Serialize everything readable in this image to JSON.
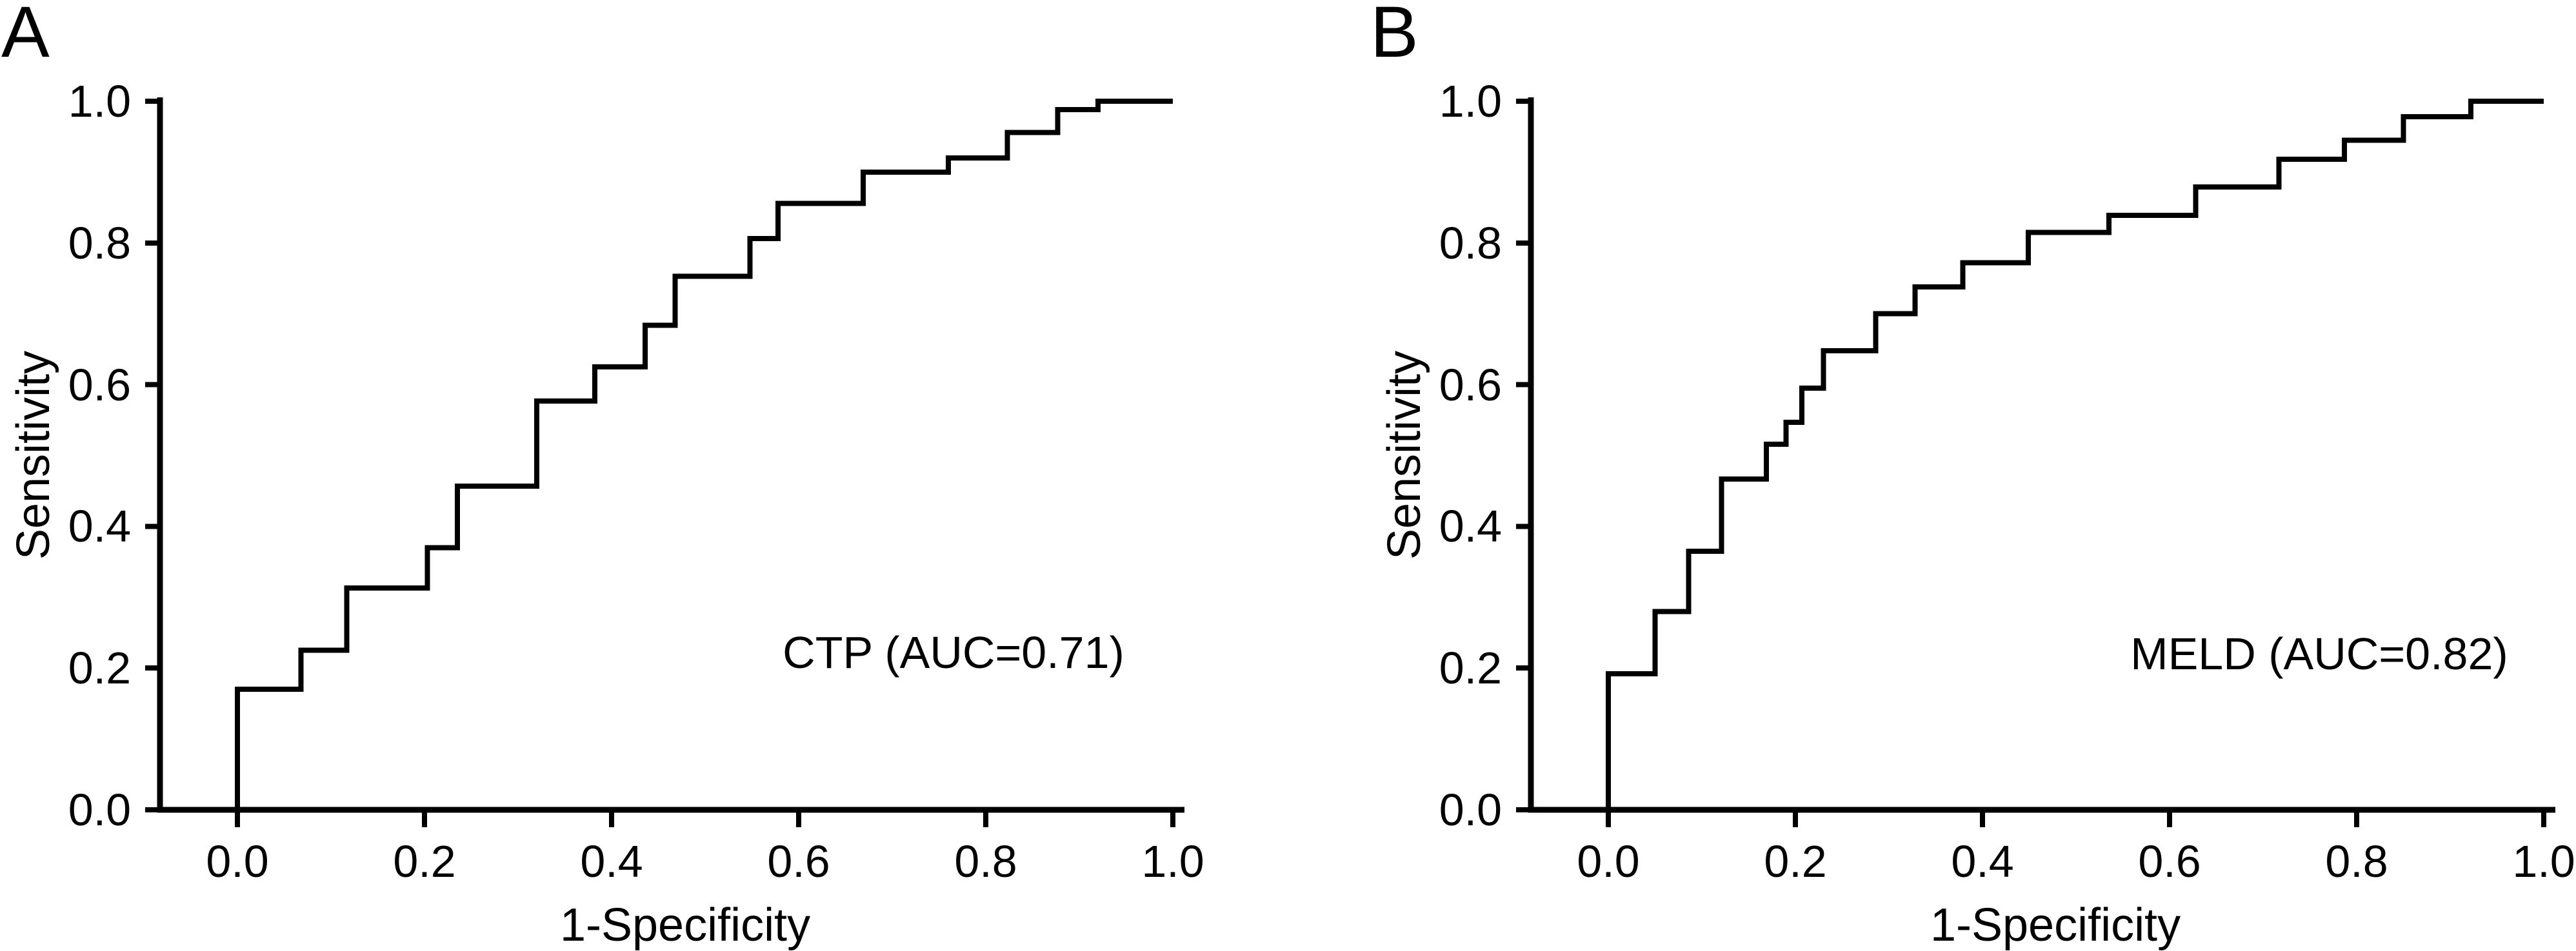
{
  "figure": {
    "background_color": "#ffffff",
    "ink_color": "#000000",
    "description": "Two-panel ROC curve figure"
  },
  "chart_data": [
    {
      "type": "line",
      "style": "step-roc-curve",
      "panel_label": "A",
      "series_name": "CTP",
      "annotation": "CTP (AUC=0.71)",
      "auc": 0.71,
      "xlabel": "1-Specificity",
      "ylabel": "Sensitivity",
      "xlim": [
        0.0,
        1.0
      ],
      "ylim": [
        0.0,
        1.0
      ],
      "grid": false,
      "legend": "none",
      "x_ticks": [
        0.0,
        0.2,
        0.4,
        0.6,
        0.8,
        1.0
      ],
      "y_ticks": [
        0.0,
        0.2,
        0.4,
        0.6,
        0.8,
        1.0
      ],
      "x_tick_labels": [
        "0.0",
        "0.2",
        "0.4",
        "0.6",
        "0.8",
        "1.0"
      ],
      "y_tick_labels": [
        "0.0",
        "0.2",
        "0.4",
        "0.6",
        "0.8",
        "1.0"
      ],
      "points": [
        [
          0,
          0
        ],
        [
          0,
          0.17
        ],
        [
          0.068,
          0.17
        ],
        [
          0.068,
          0.225
        ],
        [
          0.117,
          0.225
        ],
        [
          0.117,
          0.313
        ],
        [
          0.203,
          0.313
        ],
        [
          0.203,
          0.37
        ],
        [
          0.235,
          0.37
        ],
        [
          0.235,
          0.457
        ],
        [
          0.32,
          0.457
        ],
        [
          0.32,
          0.577
        ],
        [
          0.382,
          0.577
        ],
        [
          0.382,
          0.625
        ],
        [
          0.436,
          0.625
        ],
        [
          0.436,
          0.684
        ],
        [
          0.468,
          0.684
        ],
        [
          0.468,
          0.753
        ],
        [
          0.548,
          0.753
        ],
        [
          0.548,
          0.806
        ],
        [
          0.578,
          0.806
        ],
        [
          0.578,
          0.856
        ],
        [
          0.669,
          0.856
        ],
        [
          0.669,
          0.9
        ],
        [
          0.76,
          0.9
        ],
        [
          0.76,
          0.92
        ],
        [
          0.823,
          0.92
        ],
        [
          0.823,
          0.956
        ],
        [
          0.877,
          0.956
        ],
        [
          0.877,
          0.988
        ],
        [
          0.92,
          0.988
        ],
        [
          0.92,
          1.0
        ],
        [
          1.0,
          1.0
        ]
      ]
    },
    {
      "type": "line",
      "style": "step-roc-curve",
      "panel_label": "B",
      "series_name": "MELD",
      "annotation": "MELD (AUC=0.82)",
      "auc": 0.82,
      "xlabel": "1-Specificity",
      "ylabel": "Sensitivity",
      "xlim": [
        0.0,
        1.0
      ],
      "ylim": [
        0.0,
        1.0
      ],
      "grid": false,
      "legend": "none",
      "x_ticks": [
        0.0,
        0.2,
        0.4,
        0.6,
        0.8,
        1.0
      ],
      "y_ticks": [
        0.0,
        0.2,
        0.4,
        0.6,
        0.8,
        1.0
      ],
      "x_tick_labels": [
        "0.0",
        "0.2",
        "0.4",
        "0.6",
        "0.8",
        "1.0"
      ],
      "y_tick_labels": [
        "0.0",
        "0.2",
        "0.4",
        "0.6",
        "0.8",
        "1.0"
      ],
      "points": [
        [
          0,
          0
        ],
        [
          0,
          0.192
        ],
        [
          0.05,
          0.192
        ],
        [
          0.05,
          0.28
        ],
        [
          0.086,
          0.28
        ],
        [
          0.086,
          0.365
        ],
        [
          0.121,
          0.365
        ],
        [
          0.121,
          0.467
        ],
        [
          0.169,
          0.467
        ],
        [
          0.169,
          0.516
        ],
        [
          0.19,
          0.516
        ],
        [
          0.19,
          0.547
        ],
        [
          0.207,
          0.547
        ],
        [
          0.207,
          0.595
        ],
        [
          0.23,
          0.595
        ],
        [
          0.23,
          0.648
        ],
        [
          0.286,
          0.648
        ],
        [
          0.286,
          0.7
        ],
        [
          0.328,
          0.7
        ],
        [
          0.328,
          0.738
        ],
        [
          0.379,
          0.738
        ],
        [
          0.379,
          0.772
        ],
        [
          0.449,
          0.772
        ],
        [
          0.449,
          0.815
        ],
        [
          0.535,
          0.815
        ],
        [
          0.535,
          0.839
        ],
        [
          0.628,
          0.839
        ],
        [
          0.628,
          0.879
        ],
        [
          0.717,
          0.879
        ],
        [
          0.717,
          0.918
        ],
        [
          0.787,
          0.918
        ],
        [
          0.787,
          0.945
        ],
        [
          0.85,
          0.945
        ],
        [
          0.85,
          0.978
        ],
        [
          0.922,
          0.978
        ],
        [
          0.922,
          1.0
        ],
        [
          1.0,
          1.0
        ]
      ]
    }
  ]
}
